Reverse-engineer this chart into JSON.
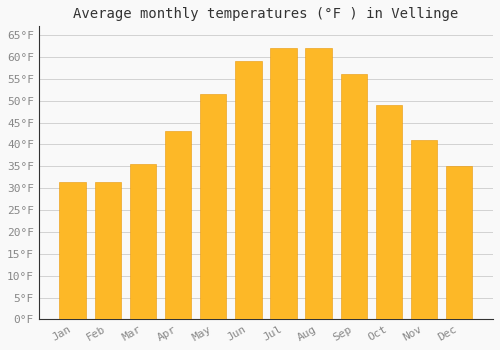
{
  "title": "Average monthly temperatures (°F ) in Vellinge",
  "months": [
    "Jan",
    "Feb",
    "Mar",
    "Apr",
    "May",
    "Jun",
    "Jul",
    "Aug",
    "Sep",
    "Oct",
    "Nov",
    "Dec"
  ],
  "values": [
    31.5,
    31.5,
    35.5,
    43.0,
    51.5,
    59.0,
    62.0,
    62.0,
    56.0,
    49.0,
    41.0,
    35.0
  ],
  "bar_color_top": "#FDB827",
  "bar_color_bottom": "#F5A623",
  "bar_edge_color": "#E8980A",
  "background_color": "#f9f9f9",
  "grid_color": "#cccccc",
  "ylim": [
    0,
    67
  ],
  "title_fontsize": 10,
  "tick_fontsize": 8,
  "title_color": "#333333",
  "tick_color": "#888888",
  "spine_color": "#333333",
  "font_family": "monospace"
}
